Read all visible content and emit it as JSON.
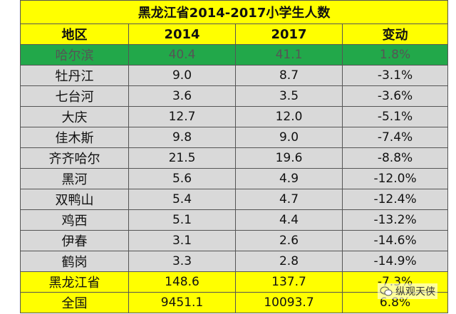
{
  "table": {
    "title": "黑龙江省2014-2017小学生人数",
    "header": [
      "地区",
      "2014",
      "2017",
      "变动"
    ],
    "rows": [
      [
        "哈尔滨",
        "40.4",
        "41.1",
        "1.8%"
      ],
      [
        "牡丹江",
        "9.0",
        "8.7",
        "-3.1%"
      ],
      [
        "七台河",
        "3.6",
        "3.5",
        "-3.6%"
      ],
      [
        "大庆",
        "12.7",
        "12.0",
        "-5.1%"
      ],
      [
        "佳木斯",
        "9.8",
        "9.0",
        "-7.4%"
      ],
      [
        "齐齐哈尔",
        "21.5",
        "19.6",
        "-8.8%"
      ],
      [
        "黑河",
        "5.6",
        "4.9",
        "-12.0%"
      ],
      [
        "双鸭山",
        "5.4",
        "4.7",
        "-12.4%"
      ],
      [
        "鸡西",
        "5.1",
        "4.4",
        "-13.2%"
      ],
      [
        "伊春",
        "3.1",
        "2.6",
        "-14.6%"
      ],
      [
        "鹤岗",
        "3.3",
        "2.8",
        "-14.9%"
      ],
      [
        "黑龙江省",
        "148.6",
        "137.7",
        "-7.3%"
      ],
      [
        "全国",
        "9451.1",
        "10093.7",
        "6.8%"
      ]
    ]
  },
  "watermark": "纵观天侠"
}
